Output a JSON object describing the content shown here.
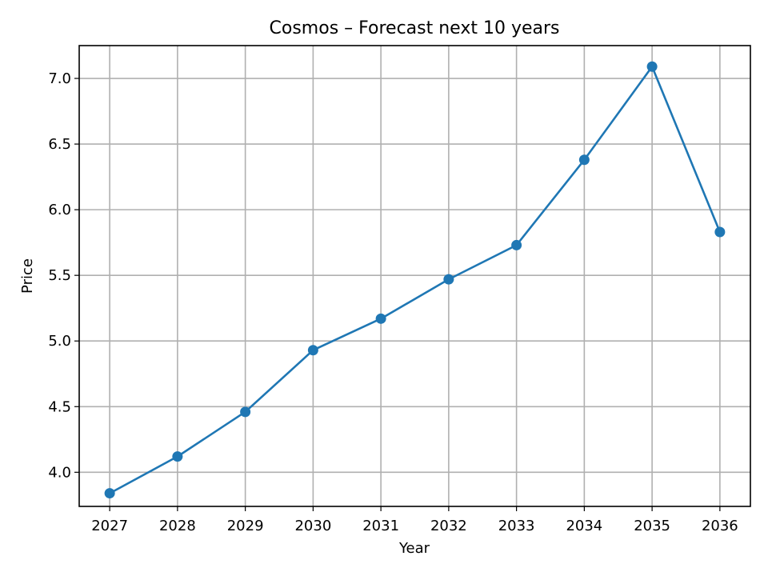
{
  "chart_data": {
    "type": "line",
    "title": "Cosmos – Forecast next 10 years",
    "xlabel": "Year",
    "ylabel": "Price",
    "grid": true,
    "x": [
      2027,
      2028,
      2029,
      2030,
      2031,
      2032,
      2033,
      2034,
      2035,
      2036
    ],
    "xticks": [
      "2027",
      "2028",
      "2029",
      "2030",
      "2031",
      "2032",
      "2033",
      "2034",
      "2035",
      "2036"
    ],
    "yticks": [
      "4.0",
      "4.5",
      "5.0",
      "5.5",
      "6.0",
      "6.5",
      "7.0"
    ],
    "xlim": [
      2026.55,
      2036.45
    ],
    "ylim": [
      3.74,
      7.25
    ],
    "series": [
      {
        "values": [
          3.84,
          4.12,
          4.46,
          4.93,
          5.17,
          5.47,
          5.73,
          6.38,
          7.09,
          5.83
        ],
        "color": "#1f77b4",
        "marker": "circle"
      }
    ]
  }
}
